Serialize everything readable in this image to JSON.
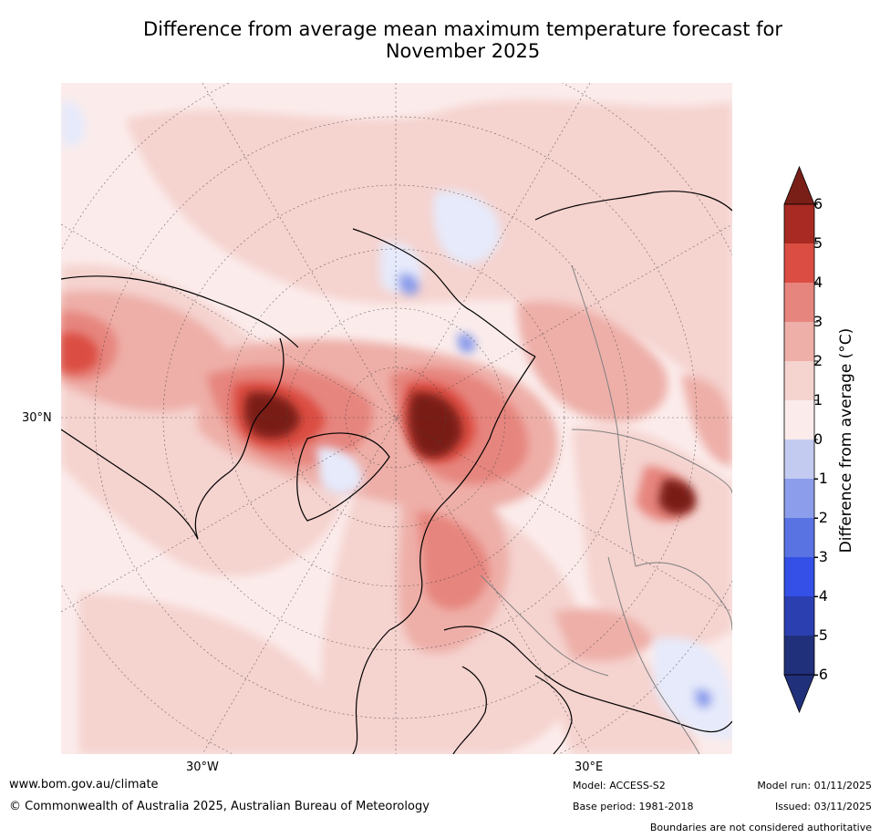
{
  "title": {
    "line1": "Difference from average mean maximum temperature forecast for",
    "line2": "November 2025"
  },
  "map": {
    "projection": "north polar stereographic",
    "lat_label": "30°N",
    "lon_labels": [
      "30°W",
      "30°E"
    ],
    "palette": {
      "-6": "#21307a",
      "-5": "#2b3fb0",
      "-4": "#3450e6",
      "-3": "#5a73e3",
      "-2": "#8c9deb",
      "-1": "#c3cbf1",
      "0": "#e6eafb",
      "1": "#fbeceb",
      "2": "#f5d3cf",
      "3": "#eeafa8",
      "4": "#e6857e",
      "5": "#db4d42",
      "6": "#a82a22",
      "above": "#7a1f18"
    }
  },
  "colorbar": {
    "ticks": [
      "6",
      "5",
      "4",
      "3",
      "2",
      "1",
      "0",
      "-1",
      "-2",
      "-3",
      "-4",
      "-5",
      "-6"
    ],
    "label": "Difference from average (°C)"
  },
  "footer": {
    "website": "www.bom.gov.au/climate",
    "copyright": "© Commonwealth of Australia 2025, Australian Bureau of Meteorology",
    "model": "Model: ACCESS-S2",
    "base_period": "Base period: 1981-2018",
    "model_run": "Model run: 01/11/2025",
    "issued": "Issued: 03/11/2025",
    "disclaimer": "Boundaries are not considered authoritative"
  }
}
